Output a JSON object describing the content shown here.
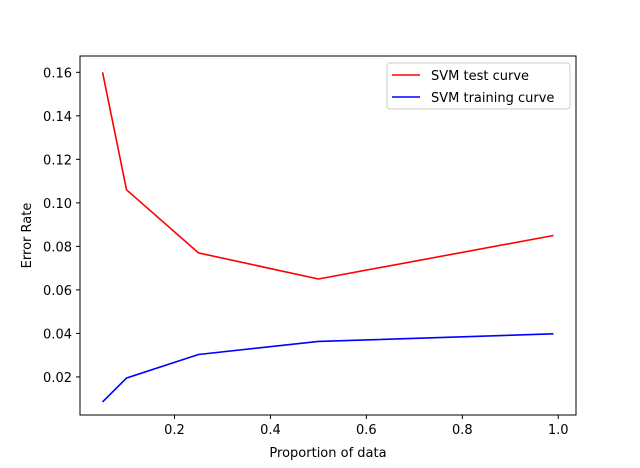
{
  "chart_data": {
    "type": "line",
    "title": "",
    "xlabel": "Proportion of data",
    "ylabel": "Error Rate",
    "xlim": [
      0.003,
      1.037
    ],
    "ylim": [
      0.0025,
      0.1675
    ],
    "xticks": [
      0.2,
      0.4,
      0.6,
      0.8,
      1.0
    ],
    "xtick_labels": [
      "0.2",
      "0.4",
      "0.6",
      "0.8",
      "1.0"
    ],
    "yticks": [
      0.02,
      0.04,
      0.06,
      0.08,
      0.1,
      0.12,
      0.14,
      0.16
    ],
    "ytick_labels": [
      "0.02",
      "0.04",
      "0.06",
      "0.08",
      "0.10",
      "0.12",
      "0.14",
      "0.16"
    ],
    "grid": false,
    "legend_position": "top-right",
    "series": [
      {
        "name": "SVM test curve",
        "color": "#ff0000",
        "x": [
          0.05,
          0.1,
          0.25,
          0.5,
          0.99
        ],
        "y": [
          0.16,
          0.106,
          0.077,
          0.065,
          0.085
        ]
      },
      {
        "name": "SVM training curve",
        "color": "#0000ff",
        "x": [
          0.05,
          0.1,
          0.25,
          0.5,
          0.99
        ],
        "y": [
          0.0085,
          0.0195,
          0.0303,
          0.0363,
          0.0398
        ]
      }
    ]
  }
}
